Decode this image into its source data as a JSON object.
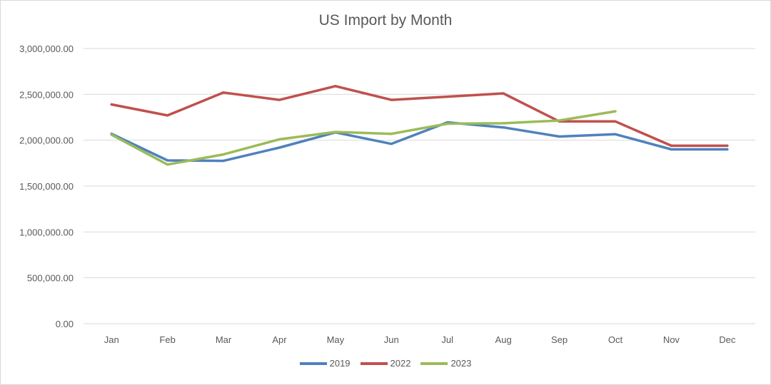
{
  "chart_data": {
    "type": "line",
    "title": "US Import by Month",
    "xlabel": "",
    "ylabel": "",
    "categories": [
      "Jan",
      "Feb",
      "Mar",
      "Apr",
      "May",
      "Jun",
      "Jul",
      "Aug",
      "Sep",
      "Oct",
      "Nov",
      "Dec"
    ],
    "ylim": [
      0,
      3000000
    ],
    "yticks": [
      0,
      500000,
      1000000,
      1500000,
      2000000,
      2500000,
      3000000
    ],
    "ytick_labels": [
      "0.00",
      "500,000.00",
      "1,000,000.00",
      "1,500,000.00",
      "2,000,000.00",
      "2,500,000.00",
      "3,000,000.00"
    ],
    "grid": true,
    "legend_position": "bottom",
    "series": [
      {
        "name": "2019",
        "color": "#4f81bd",
        "values": [
          2070000,
          1780000,
          1775000,
          1920000,
          2085000,
          1960000,
          2195000,
          2140000,
          2040000,
          2065000,
          1900000,
          1900000
        ]
      },
      {
        "name": "2022",
        "color": "#c0504d",
        "values": [
          2390000,
          2270000,
          2520000,
          2440000,
          2590000,
          2440000,
          2475000,
          2510000,
          2205000,
          2205000,
          1940000,
          1940000
        ]
      },
      {
        "name": "2023",
        "color": "#9bbb59",
        "values": [
          2060000,
          1735000,
          1845000,
          2010000,
          2090000,
          2070000,
          2180000,
          2185000,
          2215000,
          2315000,
          null,
          null
        ]
      }
    ]
  }
}
